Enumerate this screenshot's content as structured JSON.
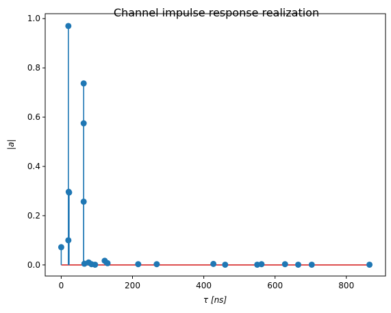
{
  "chart_data": {
    "type": "stem",
    "title": "Channel impulse response realization",
    "xlabel": "τ [ns]",
    "ylabel": "|a|",
    "xlim": [
      -45,
      910
    ],
    "ylim": [
      -0.045,
      1.02
    ],
    "xticks": [
      0,
      200,
      400,
      600,
      800
    ],
    "xtick_labels": [
      "0",
      "200",
      "400",
      "600",
      "800"
    ],
    "yticks": [
      0.0,
      0.2,
      0.4,
      0.6,
      0.8,
      1.0
    ],
    "ytick_labels": [
      "0.0",
      "0.2",
      "0.4",
      "0.6",
      "0.8",
      "1.0"
    ],
    "grid": false,
    "colors": {
      "stem": "#1f77b4",
      "baseline": "#d62728"
    },
    "points": [
      {
        "x": 0,
        "y": 0.072
      },
      {
        "x": 20,
        "y": 0.97
      },
      {
        "x": 20,
        "y": 0.1
      },
      {
        "x": 21,
        "y": 0.297
      },
      {
        "x": 22,
        "y": 0.294
      },
      {
        "x": 63,
        "y": 0.737
      },
      {
        "x": 63,
        "y": 0.575
      },
      {
        "x": 63,
        "y": 0.257
      },
      {
        "x": 65,
        "y": 0.005
      },
      {
        "x": 77,
        "y": 0.01
      },
      {
        "x": 85,
        "y": 0.003
      },
      {
        "x": 95,
        "y": 0.001
      },
      {
        "x": 122,
        "y": 0.017
      },
      {
        "x": 130,
        "y": 0.007
      },
      {
        "x": 216,
        "y": 0.003
      },
      {
        "x": 268,
        "y": 0.003
      },
      {
        "x": 427,
        "y": 0.004
      },
      {
        "x": 460,
        "y": 0.001
      },
      {
        "x": 550,
        "y": 0.001
      },
      {
        "x": 562,
        "y": 0.003
      },
      {
        "x": 628,
        "y": 0.003
      },
      {
        "x": 665,
        "y": 0.001
      },
      {
        "x": 703,
        "y": 0.001
      },
      {
        "x": 865,
        "y": 0.001
      }
    ]
  }
}
